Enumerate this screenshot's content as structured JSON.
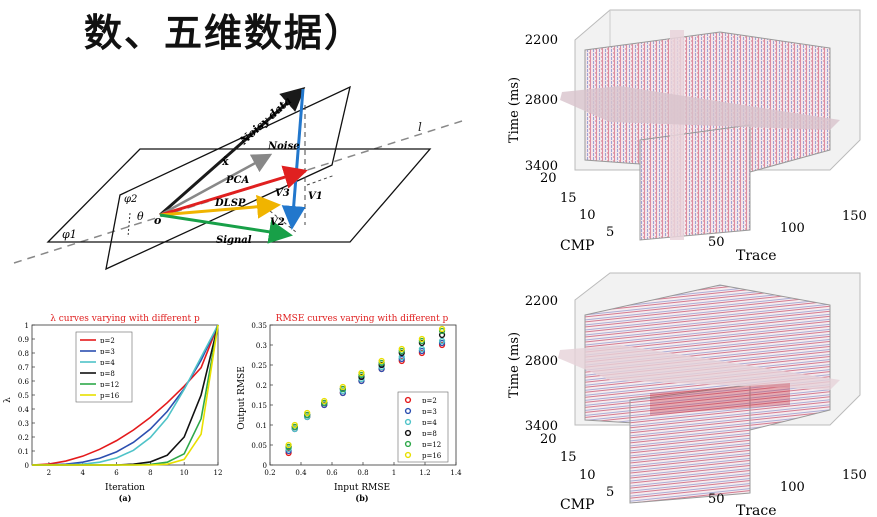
{
  "slide": {
    "title": "数、五维数据）"
  },
  "diagram": {
    "labels": {
      "noisy_data": "Noisy data",
      "noise": "Noise",
      "x_hat": "x̂",
      "pca": "PCA",
      "dlsp": "DLSP",
      "signal": "Signal",
      "v1": "V1",
      "v2": "V2",
      "v3": "V3",
      "phi1": "φ1",
      "phi2": "φ2",
      "theta": "θ",
      "origin": "o",
      "line_l": "l"
    },
    "colors": {
      "noisy": "#1a1a1a",
      "signal_vec": "#2277cc",
      "pca": "#e02020",
      "x_hat": "#888888",
      "dlsp": "#f0b400",
      "signal": "#18a048"
    }
  },
  "chart_data": [
    {
      "type": "line",
      "title": "λ curves varying with different p",
      "xlabel": "Iteration",
      "ylabel": "λ",
      "caption": "(a)",
      "xlim": [
        1,
        12
      ],
      "ylim": [
        0,
        1
      ],
      "xticks": [
        2,
        4,
        6,
        8,
        10,
        12
      ],
      "yticks": [
        0,
        0.1,
        0.2,
        0.3,
        0.4,
        0.5,
        0.6,
        0.7,
        0.8,
        0.9,
        1
      ],
      "ytick_labels": [
        "0",
        "0.1",
        "0.2",
        "0.3",
        "0.4",
        "0.5",
        "0.6",
        "0.7",
        "0.8",
        "0.9",
        "1"
      ],
      "legend_position": "top-left",
      "x": [
        1,
        2,
        3,
        4,
        5,
        6,
        7,
        8,
        9,
        10,
        11,
        12
      ],
      "series": [
        {
          "name": "p=2",
          "color": "#e41a1c",
          "values": [
            0,
            0.007,
            0.028,
            0.063,
            0.112,
            0.174,
            0.25,
            0.34,
            0.445,
            0.563,
            0.695,
            1.0
          ]
        },
        {
          "name": "p=3",
          "color": "#2c4fb0",
          "values": [
            0,
            0.001,
            0.006,
            0.02,
            0.048,
            0.094,
            0.162,
            0.257,
            0.383,
            0.545,
            0.748,
            1.0
          ]
        },
        {
          "name": "p=4",
          "color": "#4fc3c8",
          "values": [
            0,
            0,
            0.001,
            0.006,
            0.02,
            0.05,
            0.105,
            0.196,
            0.336,
            0.54,
            0.77,
            1.0
          ]
        },
        {
          "name": "p=8",
          "color": "#111111",
          "values": [
            0,
            0,
            0,
            0,
            0,
            0,
            0.006,
            0.022,
            0.07,
            0.2,
            0.5,
            1.0
          ]
        },
        {
          "name": "p=12",
          "color": "#2ea84a",
          "values": [
            0,
            0,
            0,
            0,
            0,
            0,
            0,
            0.004,
            0.02,
            0.08,
            0.33,
            1.0
          ]
        },
        {
          "name": "p=16",
          "color": "#e8e000",
          "values": [
            0,
            0,
            0,
            0,
            0,
            0,
            0,
            0,
            0.006,
            0.04,
            0.22,
            1.0
          ]
        }
      ]
    },
    {
      "type": "scatter",
      "title": "RMSE curves varying with different p",
      "xlabel": "Input RMSE",
      "ylabel": "Output RMSE",
      "caption": "(b)",
      "xlim": [
        0.2,
        1.4
      ],
      "ylim": [
        0,
        0.35
      ],
      "xticks": [
        0.2,
        0.4,
        0.6,
        0.8,
        1,
        1.2,
        1.4
      ],
      "xtick_labels": [
        "0.2",
        "0.4",
        "0.6",
        "0.8",
        "1",
        "1.2",
        "1.4"
      ],
      "yticks": [
        0,
        0.05,
        0.1,
        0.15,
        0.2,
        0.25,
        0.3,
        0.35
      ],
      "ytick_labels": [
        "0",
        "0.05",
        "0.1",
        "0.15",
        "0.2",
        "0.25",
        "0.3",
        "0.35"
      ],
      "legend_position": "bottom-right",
      "x": [
        0.32,
        0.36,
        0.44,
        0.55,
        0.67,
        0.79,
        0.92,
        1.05,
        1.18,
        1.31
      ],
      "series": [
        {
          "name": "p=2",
          "color": "#e41a1c",
          "values": [
            0.03,
            0.09,
            0.12,
            0.15,
            0.18,
            0.21,
            0.24,
            0.26,
            0.28,
            0.3
          ]
        },
        {
          "name": "p=3",
          "color": "#2c4fb0",
          "values": [
            0.035,
            0.09,
            0.12,
            0.15,
            0.18,
            0.21,
            0.24,
            0.265,
            0.285,
            0.305
          ]
        },
        {
          "name": "p=4",
          "color": "#4fc3c8",
          "values": [
            0.04,
            0.09,
            0.12,
            0.155,
            0.185,
            0.215,
            0.245,
            0.27,
            0.29,
            0.31
          ]
        },
        {
          "name": "p=8",
          "color": "#111111",
          "values": [
            0.045,
            0.095,
            0.125,
            0.155,
            0.19,
            0.22,
            0.25,
            0.28,
            0.305,
            0.325
          ]
        },
        {
          "name": "p=12",
          "color": "#2ea84a",
          "values": [
            0.045,
            0.095,
            0.125,
            0.155,
            0.19,
            0.225,
            0.255,
            0.285,
            0.31,
            0.335
          ]
        },
        {
          "name": "p=16",
          "color": "#e8e000",
          "values": [
            0.05,
            0.1,
            0.13,
            0.16,
            0.195,
            0.23,
            0.26,
            0.29,
            0.315,
            0.34
          ]
        }
      ]
    }
  ],
  "seismic_top": {
    "time_label": "Time (ms)",
    "time_ticks": [
      "2200",
      "2800",
      "3400"
    ],
    "cmp_label": "CMP",
    "cmp_ticks": [
      "20",
      "15",
      "10",
      "5"
    ],
    "trace_label": "Trace",
    "trace_ticks": [
      "50",
      "100",
      "150"
    ]
  },
  "seismic_bottom": {
    "time_label": "Time (ms)",
    "time_ticks": [
      "2200",
      "2800",
      "3400"
    ],
    "cmp_label": "CMP",
    "cmp_ticks": [
      "20",
      "15",
      "10",
      "5"
    ],
    "trace_label": "Trace",
    "trace_ticks": [
      "50",
      "100",
      "150"
    ]
  }
}
